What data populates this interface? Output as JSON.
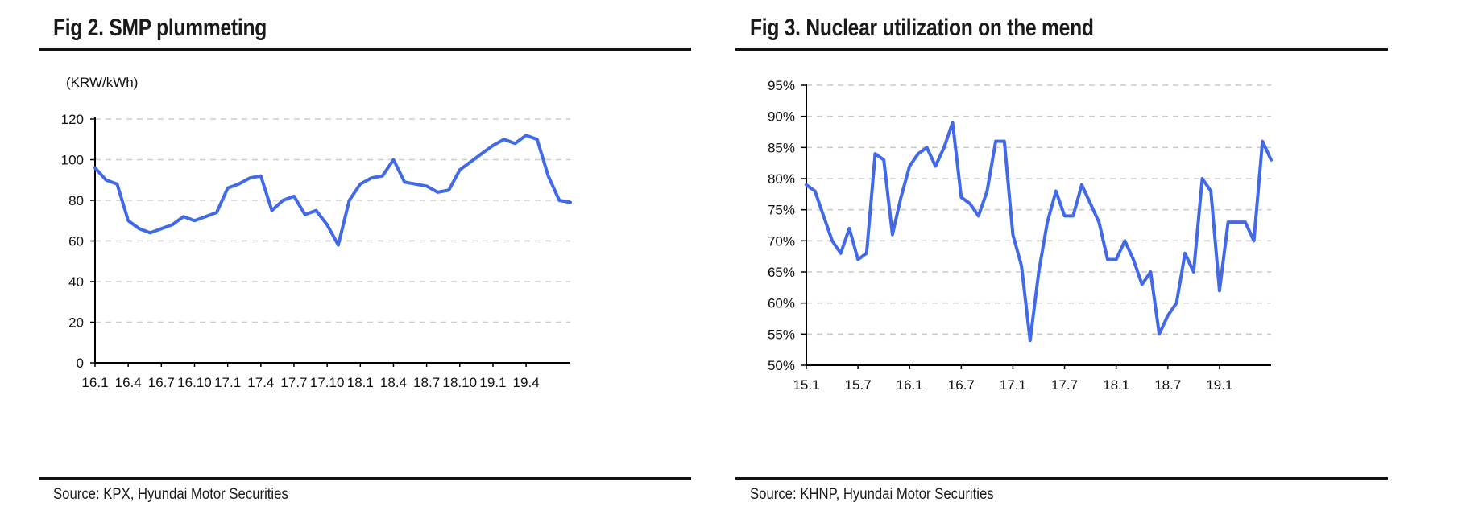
{
  "figures": [
    {
      "title": "Fig 2. SMP plummeting",
      "source": "Source: KPX, Hyundai Motor Securities"
    },
    {
      "title": "Fig 3. Nuclear utilization on the mend",
      "source": "Source: KHNP, Hyundai Motor Securities"
    }
  ],
  "colors": {
    "line": "#4169E8",
    "grid": "#cccccc",
    "axis": "#000000"
  },
  "chart_data": [
    {
      "type": "line",
      "title": "Fig 2. SMP plummeting",
      "ylabel": "(KRW/kWh)",
      "ylim": [
        0,
        120
      ],
      "yticks": [
        0,
        20,
        40,
        60,
        80,
        100,
        120
      ],
      "xlim": [
        "2016-01",
        "2019-08"
      ],
      "xtick_labels": [
        "16.1",
        "16.4",
        "16.7",
        "16.10",
        "17.1",
        "17.4",
        "17.7",
        "17.10",
        "18.1",
        "18.4",
        "18.7",
        "18.10",
        "19.1",
        "19.4"
      ],
      "grid": "horizontal dashed",
      "series": [
        {
          "x": [
            "2016-01",
            "2016-02",
            "2016-03",
            "2016-04",
            "2016-05",
            "2016-06",
            "2016-07",
            "2016-08",
            "2016-09",
            "2016-10",
            "2016-11",
            "2016-12",
            "2017-01",
            "2017-02",
            "2017-03",
            "2017-04",
            "2017-05",
            "2017-06",
            "2017-07",
            "2017-08",
            "2017-09",
            "2017-10",
            "2017-11",
            "2017-12",
            "2018-01",
            "2018-02",
            "2018-03",
            "2018-04",
            "2018-05",
            "2018-06",
            "2018-07",
            "2018-08",
            "2018-09",
            "2018-10",
            "2018-11",
            "2018-12",
            "2019-01",
            "2019-02",
            "2019-03",
            "2019-04",
            "2019-05",
            "2019-06",
            "2019-07",
            "2019-08"
          ],
          "values": [
            96,
            90,
            88,
            70,
            66,
            64,
            66,
            68,
            72,
            70,
            72,
            74,
            86,
            88,
            91,
            92,
            75,
            80,
            82,
            73,
            75,
            68,
            58,
            80,
            88,
            91,
            92,
            100,
            89,
            88,
            87,
            84,
            85,
            95,
            99,
            103,
            107,
            110,
            108,
            112,
            110,
            92,
            80,
            79
          ]
        }
      ]
    },
    {
      "type": "line",
      "title": "Fig 3. Nuclear utilization on the mend",
      "ylim": [
        50,
        95
      ],
      "yticks": [
        "50%",
        "55%",
        "60%",
        "65%",
        "70%",
        "75%",
        "80%",
        "85%",
        "90%",
        "95%"
      ],
      "xlim": [
        "2015-01",
        "2019-07"
      ],
      "xtick_labels": [
        "15.1",
        "15.7",
        "16.1",
        "16.7",
        "17.1",
        "17.7",
        "18.1",
        "18.7",
        "19.1"
      ],
      "grid": "horizontal dashed",
      "series": [
        {
          "x": [
            "2015-01",
            "2015-02",
            "2015-03",
            "2015-04",
            "2015-05",
            "2015-06",
            "2015-07",
            "2015-08",
            "2015-09",
            "2015-10",
            "2015-11",
            "2015-12",
            "2016-01",
            "2016-02",
            "2016-03",
            "2016-04",
            "2016-05",
            "2016-06",
            "2016-07",
            "2016-08",
            "2016-09",
            "2016-10",
            "2016-11",
            "2016-12",
            "2017-01",
            "2017-02",
            "2017-03",
            "2017-04",
            "2017-05",
            "2017-06",
            "2017-07",
            "2017-08",
            "2017-09",
            "2017-10",
            "2017-11",
            "2017-12",
            "2018-01",
            "2018-02",
            "2018-03",
            "2018-04",
            "2018-05",
            "2018-06",
            "2018-07",
            "2018-08",
            "2018-09",
            "2018-10",
            "2018-11",
            "2018-12",
            "2019-01",
            "2019-02",
            "2019-03",
            "2019-04",
            "2019-05",
            "2019-06",
            "2019-07"
          ],
          "values": [
            79,
            78,
            74,
            70,
            68,
            72,
            67,
            68,
            84,
            83,
            71,
            77,
            82,
            84,
            85,
            82,
            85,
            89,
            77,
            76,
            74,
            78,
            86,
            86,
            71,
            66,
            54,
            65,
            73,
            78,
            74,
            74,
            79,
            76,
            73,
            67,
            67,
            70,
            67,
            63,
            65,
            55,
            58,
            60,
            68,
            65,
            80,
            78,
            62,
            73,
            73,
            73,
            70,
            86,
            83
          ]
        }
      ]
    }
  ]
}
